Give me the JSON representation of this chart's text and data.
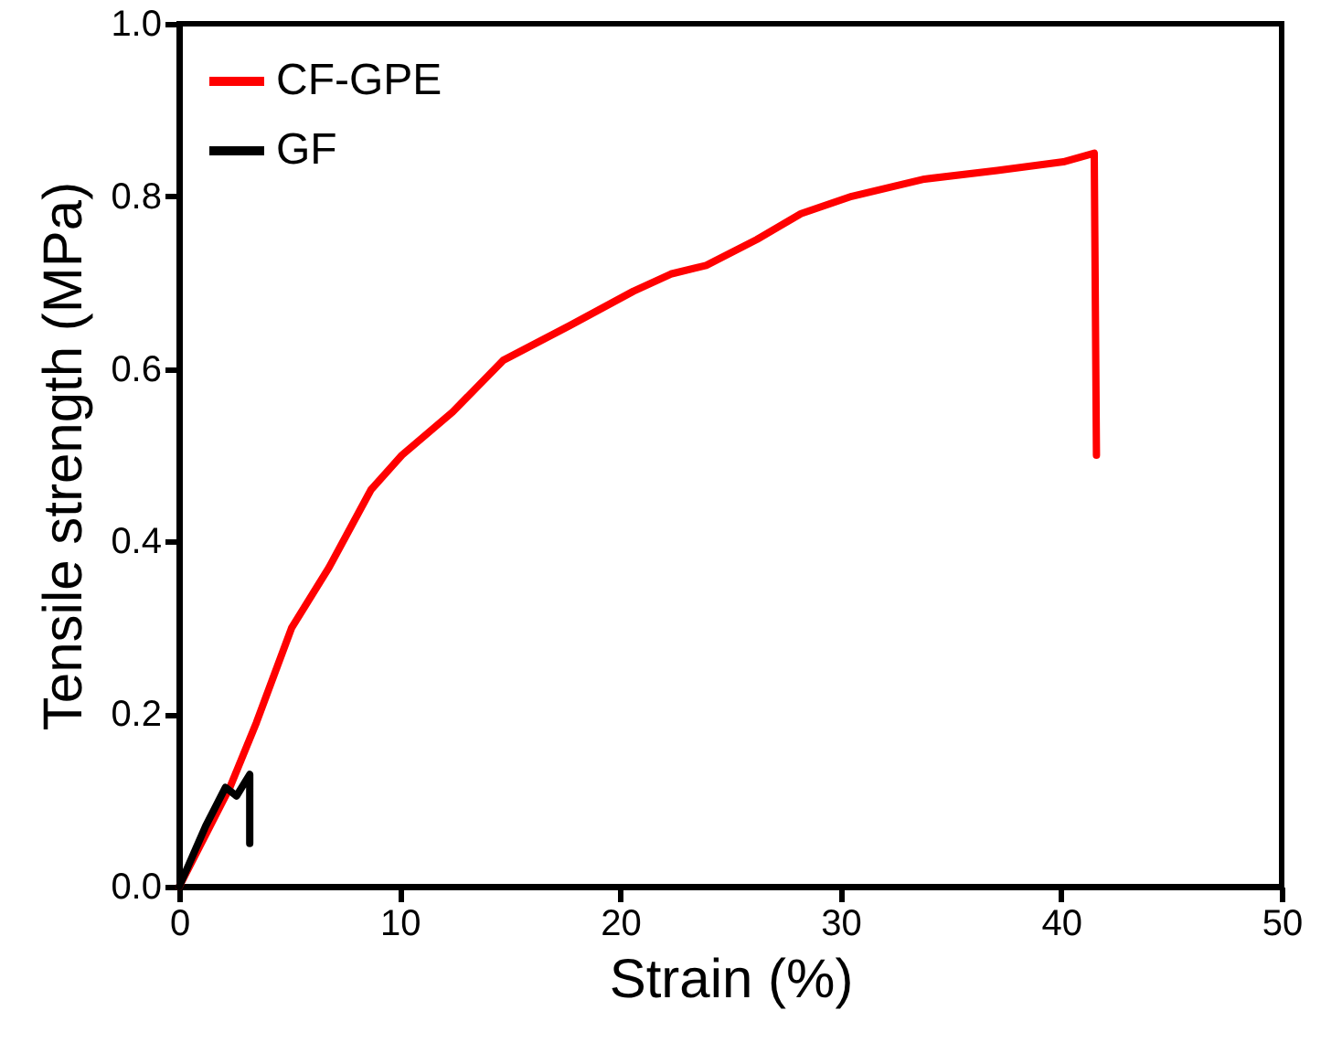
{
  "chart_data": {
    "type": "line",
    "xlabel": "Strain (%)",
    "ylabel": "Tensile strength (MPa)",
    "xlim": [
      0,
      50
    ],
    "xticks": [
      0,
      10,
      20,
      30,
      40,
      50
    ],
    "ylim": [
      0,
      1.0
    ],
    "yticks": [
      {
        "value": 0,
        "label": "0.0"
      },
      {
        "value": 0.2,
        "label": "0.2"
      },
      {
        "value": 0.4,
        "label": "0.4"
      },
      {
        "value": 0.6,
        "label": "0.6"
      },
      {
        "value": 0.8,
        "label": "0.8"
      },
      {
        "value": 1.0,
        "label": "1.0"
      }
    ],
    "grid": false,
    "legend": "top left",
    "marker": "none",
    "line_style": "solid",
    "series": [
      {
        "name": "CF-GPE",
        "color": "#ff0000",
        "x": [
          0,
          2.3,
          3.5,
          5.1,
          6.8,
          8.7,
          10.1,
          12.4,
          14.7,
          17.7,
          20.6,
          22.3,
          23.9,
          26.2,
          28.2,
          30.5,
          33.8,
          37.1,
          40.1,
          41.5,
          41.6
        ],
        "values": [
          0,
          0.115,
          0.19,
          0.3,
          0.37,
          0.46,
          0.5,
          0.55,
          0.61,
          0.65,
          0.69,
          0.71,
          0.72,
          0.75,
          0.78,
          0.8,
          0.82,
          0.83,
          0.84,
          0.85,
          0.5
        ]
      },
      {
        "name": "GF",
        "color": "#000000",
        "x": [
          0,
          1.2,
          2.1,
          2.6,
          3.2,
          3.2
        ],
        "values": [
          0,
          0.07,
          0.115,
          0.105,
          0.13,
          0.05
        ]
      }
    ]
  }
}
